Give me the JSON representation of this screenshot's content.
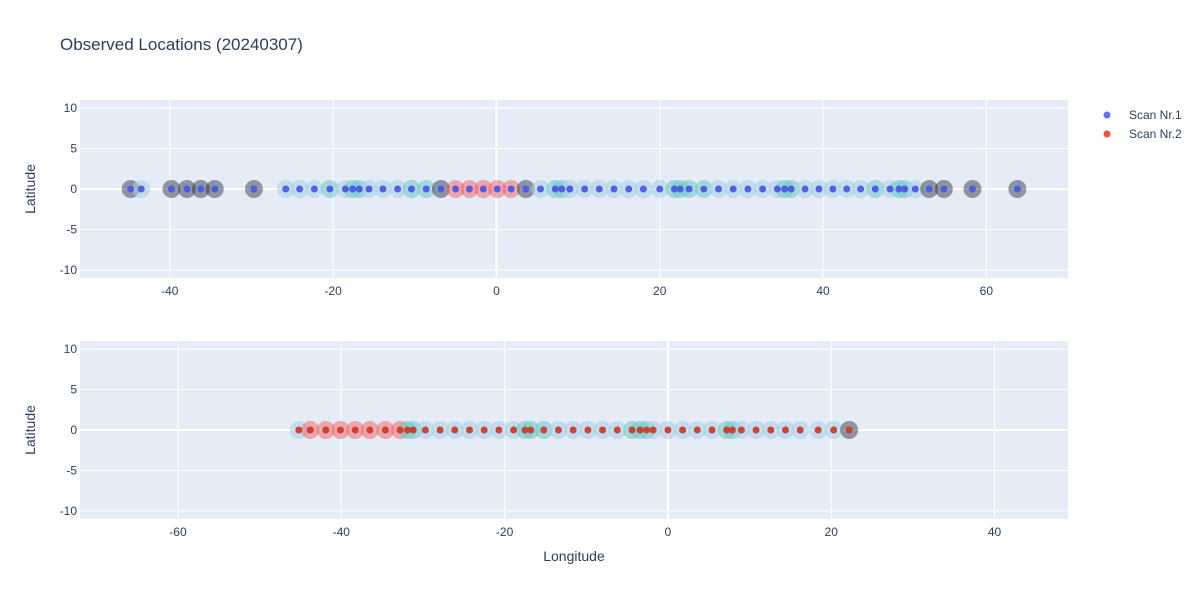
{
  "chart_data": {
    "type": "scatter",
    "title": "Observed Locations (20240307)",
    "xlabel": "Longitude",
    "legend_position": "top-right",
    "grid": true,
    "colors": {
      "plot_bg": "#e5ecf6",
      "grid": "#ffffff",
      "text": "#2a3f5f",
      "halo_blue": "#a8d0e6",
      "halo_teal": "#6cc8c8",
      "halo_red": "#f25050",
      "halo_gray": "#1e2a3a"
    },
    "legend": [
      {
        "name": "Scan Nr.1",
        "color": "#636efa"
      },
      {
        "name": "Scan Nr.2",
        "color": "#ef553b"
      }
    ],
    "subplots": [
      {
        "ylabel": "Latitude",
        "xlim": [
          -51,
          70
        ],
        "ylim": [
          -11,
          11
        ],
        "xticks": [
          -40,
          -20,
          0,
          20,
          40,
          60
        ],
        "yticks": [
          -10,
          -5,
          0,
          5,
          10
        ],
        "series": [
          {
            "name": "Scan Nr.1",
            "color": "#636efa",
            "marker_color": "#4b59e6",
            "x": [
              -44.8,
              -43.5,
              -39.8,
              -37.9,
              -36.2,
              -34.5,
              -29.7,
              -25.8,
              -24.1,
              -22.3,
              -20.4,
              -18.5,
              -17.6,
              -16.8,
              -15.6,
              -13.9,
              -12.1,
              -10.4,
              -8.6,
              -6.8,
              -5.0,
              -3.3,
              -1.6,
              0.1,
              1.8,
              3.6,
              5.4,
              7.2,
              8.0,
              9.0,
              10.8,
              12.6,
              14.4,
              16.2,
              18.0,
              20.0,
              21.8,
              22.5,
              23.6,
              25.4,
              27.2,
              29.0,
              30.8,
              32.6,
              34.4,
              35.3,
              36.1,
              37.8,
              39.5,
              41.2,
              42.9,
              44.6,
              46.4,
              48.2,
              49.3,
              50.0,
              51.3,
              53.0,
              54.8,
              58.3,
              63.8
            ],
            "y": [
              0,
              0,
              0,
              0,
              0,
              0,
              0,
              0,
              0,
              0,
              0,
              0,
              0,
              0,
              0,
              0,
              0,
              0,
              0,
              0,
              0,
              0,
              0,
              0,
              0,
              0,
              0,
              0,
              0,
              0,
              0,
              0,
              0,
              0,
              0,
              0,
              0,
              0,
              0,
              0,
              0,
              0,
              0,
              0,
              0,
              0,
              0,
              0,
              0,
              0,
              0,
              0,
              0,
              0,
              0,
              0,
              0,
              0,
              0,
              0,
              0
            ],
            "halo": [
              "gray",
              "blue",
              "gray",
              "gray",
              "gray",
              "gray",
              "gray",
              "blue",
              "blue",
              "blue",
              "teal",
              "blue",
              "teal",
              "teal",
              "blue",
              "blue",
              "blue",
              "teal",
              "teal",
              "gray",
              "red",
              "red",
              "red",
              "red",
              "red",
              "gray",
              "blue",
              "teal",
              "teal",
              "blue",
              "blue",
              "blue",
              "blue",
              "blue",
              "blue",
              "blue",
              "teal",
              "teal",
              "teal",
              "teal",
              "blue",
              "blue",
              "blue",
              "blue",
              "blue",
              "teal",
              "teal",
              "blue",
              "blue",
              "blue",
              "blue",
              "blue",
              "teal",
              "blue",
              "teal",
              "teal",
              "blue",
              "gray",
              "gray",
              "gray",
              "gray"
            ]
          }
        ]
      },
      {
        "ylabel": "Latitude",
        "xlim": [
          -72,
          49
        ],
        "ylim": [
          -11,
          11
        ],
        "xticks": [
          -60,
          -40,
          -20,
          0,
          20,
          40
        ],
        "yticks": [
          -10,
          -5,
          0,
          5,
          10
        ],
        "series": [
          {
            "name": "Scan Nr.2",
            "color": "#ef553b",
            "marker_color": "#cc3b2a",
            "x": [
              -45.2,
              -43.8,
              -41.9,
              -40.1,
              -38.3,
              -36.5,
              -34.6,
              -32.8,
              -31.9,
              -31.2,
              -29.7,
              -27.9,
              -26.1,
              -24.3,
              -22.5,
              -20.7,
              -18.9,
              -17.5,
              -16.8,
              -15.2,
              -13.4,
              -11.6,
              -9.8,
              -8.0,
              -6.2,
              -4.4,
              -3.4,
              -2.6,
              -1.8,
              0.0,
              1.8,
              3.6,
              5.4,
              7.2,
              7.9,
              9.0,
              10.8,
              12.6,
              14.4,
              16.2,
              18.4,
              20.3,
              22.2
            ],
            "y": [
              0,
              0,
              0,
              0,
              0,
              0,
              0,
              0,
              0,
              0,
              0,
              0,
              0,
              0,
              0,
              0,
              0,
              0,
              0,
              0,
              0,
              0,
              0,
              0,
              0,
              0,
              0,
              0,
              0,
              0,
              0,
              0,
              0,
              0,
              0,
              0,
              0,
              0,
              0,
              0,
              0,
              0,
              0
            ],
            "halo": [
              "blue",
              "red",
              "red",
              "red",
              "red",
              "red",
              "red",
              "red",
              "teal",
              "teal",
              "blue",
              "blue",
              "blue",
              "blue",
              "blue",
              "blue",
              "blue",
              "teal",
              "teal",
              "teal",
              "blue",
              "blue",
              "blue",
              "blue",
              "blue",
              "teal",
              "teal",
              "teal",
              "blue",
              "blue",
              "blue",
              "blue",
              "blue",
              "teal",
              "teal",
              "blue",
              "blue",
              "blue",
              "blue",
              "blue",
              "blue",
              "blue",
              "gray"
            ]
          }
        ]
      }
    ]
  }
}
